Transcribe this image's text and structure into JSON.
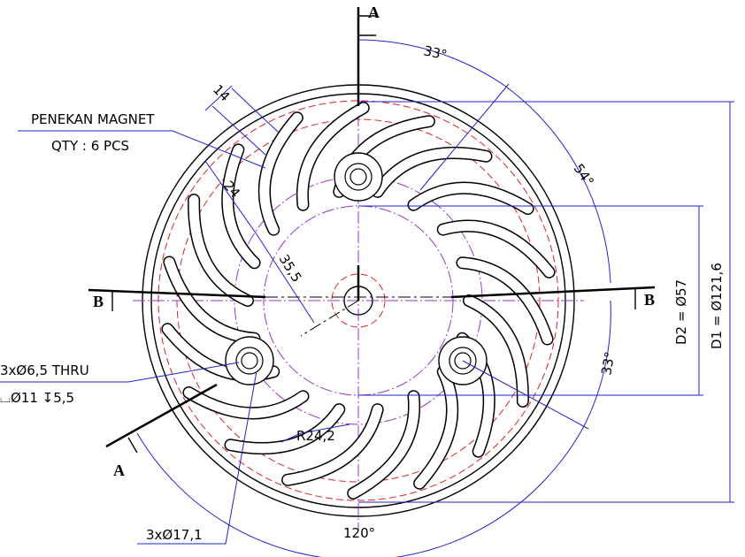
{
  "section_a_top": "A",
  "section_a_bottom": "A",
  "section_b_left": "B",
  "section_b_right": "B",
  "angle_top": "33°",
  "angle_upper_right": "54°",
  "angle_right": "33°",
  "angle_bottom": "120°",
  "dim_14": "14",
  "dim_24": "24",
  "dim_35_5": "35,5",
  "note_part": "PENEKAN MAGNET",
  "note_qty": "QTY : 6 PCS",
  "hole_thru": "3xØ6,5 THRU",
  "hole_cbore": "⌴Ø11 ↧5,5",
  "radius": "R24,2",
  "boss_dia": "3xØ17,1",
  "d2": "D2 = Ø57",
  "d1": "D1 = Ø121,6"
}
